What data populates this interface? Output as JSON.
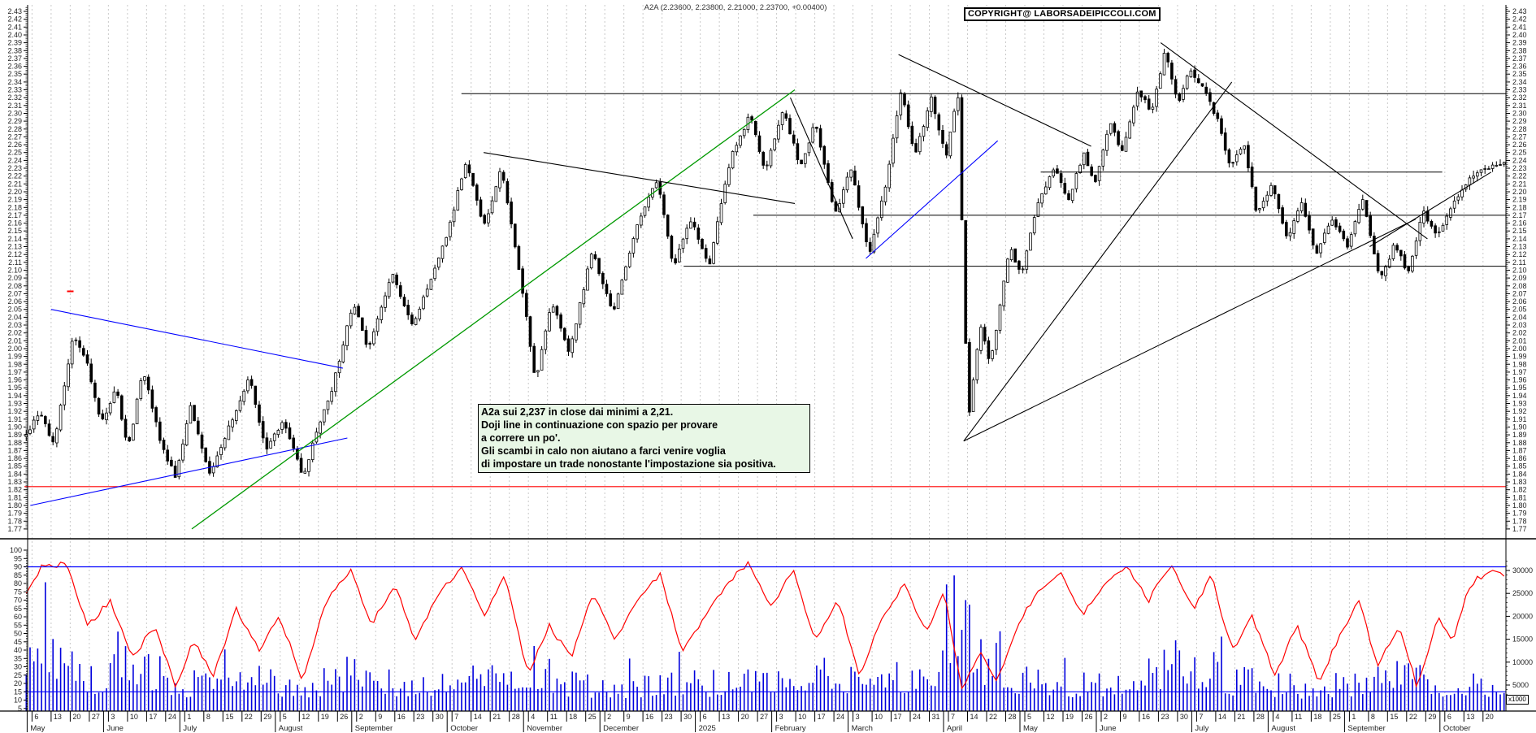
{
  "header": {
    "quote_line": "A2A (2.23600, 2.23800, 2.21000, 2.23700, +0.00400)",
    "copyright": "COPYRIGHT@ LABORSADEIPICCOLI.COM"
  },
  "annotation": {
    "lines": [
      "A2a sui 2,237 in close dai minimi a 2,21.",
      "Doji line in continuazione con spazio per provare",
      "a correre un po'.",
      "Gli scambi in calo non aiutano a farci venire voglia",
      "di impostare un trade nonostante l'impostazione sia positiva."
    ]
  },
  "colors": {
    "up_candle": "#ffffff",
    "down_candle": "#000000",
    "candle_outline": "#000000",
    "volume": "#0000dd",
    "oscillator": "#ff0000",
    "threshold": "#0000ff",
    "trend_blue": "#0000ff",
    "trend_green": "#009900",
    "trend_black": "#000000",
    "support_red": "#ff0000",
    "grid": "#c9c9c9",
    "axis_text": "#222222",
    "annotation_bg": "#e8f7e6"
  },
  "chart_data": {
    "type": "candlestick",
    "symbol": "A2A",
    "quote": {
      "open": 2.236,
      "high": 2.238,
      "low": 2.21,
      "close": 2.237,
      "change": "+0.00400"
    },
    "price_axis": {
      "min": 1.77,
      "max": 2.43,
      "tick_step": 0.01,
      "side": "both"
    },
    "oscillator_axis": {
      "min": 5,
      "max": 100,
      "tick_step": 5,
      "thresholds": [
        90,
        15
      ]
    },
    "volume_axis": {
      "ticks": [
        5000,
        10000,
        15000,
        20000,
        25000,
        30000
      ],
      "unit_note": "x1000"
    },
    "months": [
      {
        "label": "May",
        "days": [
          6,
          13,
          20,
          27
        ]
      },
      {
        "label": "June",
        "days": [
          3,
          10,
          17,
          24
        ]
      },
      {
        "label": "July",
        "days": [
          1,
          8,
          15,
          22,
          29
        ]
      },
      {
        "label": "August",
        "days": [
          5,
          12,
          19,
          26
        ]
      },
      {
        "label": "September",
        "days": [
          2,
          9,
          16,
          23,
          30
        ]
      },
      {
        "label": "October",
        "days": [
          7,
          14,
          21,
          28
        ]
      },
      {
        "label": "November",
        "days": [
          4,
          11,
          18,
          25
        ]
      },
      {
        "label": "December",
        "days": [
          2,
          9,
          16,
          23,
          30
        ]
      },
      {
        "label": "2025",
        "days": [
          6,
          13,
          20,
          27
        ]
      },
      {
        "label": "February",
        "days": [
          3,
          10,
          17,
          24
        ]
      },
      {
        "label": "March",
        "days": [
          3,
          10,
          17,
          24,
          31
        ]
      },
      {
        "label": "April",
        "days": [
          7,
          14,
          22,
          28
        ]
      },
      {
        "label": "May",
        "days": [
          5,
          12,
          19,
          26
        ]
      },
      {
        "label": "June",
        "days": [
          2,
          9,
          16,
          23,
          30
        ]
      },
      {
        "label": "July",
        "days": [
          7,
          14,
          21,
          28
        ]
      },
      {
        "label": "August",
        "days": [
          4,
          11,
          18,
          25
        ]
      },
      {
        "label": "September",
        "days": [
          1,
          8,
          15,
          22,
          29
        ]
      },
      {
        "label": "October",
        "days": [
          6,
          13,
          20
        ]
      }
    ],
    "price_path_pivots": [
      [
        0.0,
        1.885
      ],
      [
        0.01,
        1.92
      ],
      [
        0.02,
        1.875
      ],
      [
        0.033,
        2.02
      ],
      [
        0.042,
        1.985
      ],
      [
        0.052,
        1.905
      ],
      [
        0.062,
        1.95
      ],
      [
        0.07,
        1.87
      ],
      [
        0.08,
        1.975
      ],
      [
        0.092,
        1.88
      ],
      [
        0.102,
        1.835
      ],
      [
        0.112,
        1.925
      ],
      [
        0.125,
        1.84
      ],
      [
        0.138,
        1.9
      ],
      [
        0.152,
        1.965
      ],
      [
        0.163,
        1.87
      ],
      [
        0.175,
        1.91
      ],
      [
        0.188,
        1.835
      ],
      [
        0.198,
        1.9
      ],
      [
        0.208,
        1.95
      ],
      [
        0.222,
        2.06
      ],
      [
        0.232,
        2.0
      ],
      [
        0.248,
        2.095
      ],
      [
        0.262,
        2.03
      ],
      [
        0.274,
        2.085
      ],
      [
        0.286,
        2.15
      ],
      [
        0.298,
        2.24
      ],
      [
        0.31,
        2.155
      ],
      [
        0.322,
        2.23
      ],
      [
        0.335,
        2.09
      ],
      [
        0.345,
        1.96
      ],
      [
        0.356,
        2.06
      ],
      [
        0.368,
        1.995
      ],
      [
        0.383,
        2.125
      ],
      [
        0.397,
        2.045
      ],
      [
        0.413,
        2.155
      ],
      [
        0.427,
        2.215
      ],
      [
        0.438,
        2.105
      ],
      [
        0.45,
        2.165
      ],
      [
        0.462,
        2.105
      ],
      [
        0.477,
        2.245
      ],
      [
        0.49,
        2.3
      ],
      [
        0.5,
        2.225
      ],
      [
        0.512,
        2.305
      ],
      [
        0.524,
        2.23
      ],
      [
        0.534,
        2.29
      ],
      [
        0.547,
        2.17
      ],
      [
        0.558,
        2.23
      ],
      [
        0.57,
        2.12
      ],
      [
        0.581,
        2.205
      ],
      [
        0.592,
        2.33
      ],
      [
        0.601,
        2.245
      ],
      [
        0.612,
        2.32
      ],
      [
        0.622,
        2.245
      ],
      [
        0.63,
        2.33
      ],
      [
        0.637,
        1.905
      ],
      [
        0.645,
        2.03
      ],
      [
        0.652,
        1.98
      ],
      [
        0.665,
        2.13
      ],
      [
        0.673,
        2.09
      ],
      [
        0.683,
        2.18
      ],
      [
        0.695,
        2.23
      ],
      [
        0.705,
        2.19
      ],
      [
        0.715,
        2.25
      ],
      [
        0.723,
        2.21
      ],
      [
        0.733,
        2.29
      ],
      [
        0.741,
        2.25
      ],
      [
        0.752,
        2.33
      ],
      [
        0.761,
        2.3
      ],
      [
        0.77,
        2.38
      ],
      [
        0.779,
        2.31
      ],
      [
        0.786,
        2.355
      ],
      [
        0.796,
        2.33
      ],
      [
        0.806,
        2.29
      ],
      [
        0.814,
        2.23
      ],
      [
        0.823,
        2.262
      ],
      [
        0.832,
        2.17
      ],
      [
        0.842,
        2.21
      ],
      [
        0.852,
        2.14
      ],
      [
        0.862,
        2.185
      ],
      [
        0.872,
        2.12
      ],
      [
        0.882,
        2.165
      ],
      [
        0.893,
        2.13
      ],
      [
        0.903,
        2.195
      ],
      [
        0.915,
        2.085
      ],
      [
        0.925,
        2.135
      ],
      [
        0.934,
        2.095
      ],
      [
        0.944,
        2.175
      ],
      [
        0.953,
        2.145
      ],
      [
        0.962,
        2.175
      ],
      [
        0.974,
        2.215
      ],
      [
        0.985,
        2.228
      ],
      [
        1.0,
        2.237
      ]
    ],
    "oscillator_points": [
      [
        0.0,
        72
      ],
      [
        0.012,
        90
      ],
      [
        0.028,
        92
      ],
      [
        0.043,
        55
      ],
      [
        0.058,
        70
      ],
      [
        0.073,
        35
      ],
      [
        0.088,
        55
      ],
      [
        0.102,
        18
      ],
      [
        0.114,
        45
      ],
      [
        0.128,
        25
      ],
      [
        0.143,
        65
      ],
      [
        0.158,
        40
      ],
      [
        0.172,
        60
      ],
      [
        0.188,
        22
      ],
      [
        0.204,
        70
      ],
      [
        0.22,
        88
      ],
      [
        0.234,
        55
      ],
      [
        0.25,
        80
      ],
      [
        0.264,
        45
      ],
      [
        0.28,
        75
      ],
      [
        0.295,
        90
      ],
      [
        0.31,
        60
      ],
      [
        0.324,
        85
      ],
      [
        0.34,
        25
      ],
      [
        0.354,
        55
      ],
      [
        0.369,
        35
      ],
      [
        0.384,
        75
      ],
      [
        0.399,
        45
      ],
      [
        0.414,
        70
      ],
      [
        0.429,
        85
      ],
      [
        0.444,
        40
      ],
      [
        0.459,
        60
      ],
      [
        0.474,
        80
      ],
      [
        0.489,
        92
      ],
      [
        0.504,
        65
      ],
      [
        0.519,
        88
      ],
      [
        0.534,
        45
      ],
      [
        0.549,
        70
      ],
      [
        0.564,
        25
      ],
      [
        0.579,
        60
      ],
      [
        0.594,
        80
      ],
      [
        0.609,
        50
      ],
      [
        0.621,
        75
      ],
      [
        0.633,
        15
      ],
      [
        0.645,
        40
      ],
      [
        0.656,
        20
      ],
      [
        0.67,
        55
      ],
      [
        0.684,
        75
      ],
      [
        0.699,
        88
      ],
      [
        0.714,
        60
      ],
      [
        0.729,
        80
      ],
      [
        0.744,
        90
      ],
      [
        0.759,
        70
      ],
      [
        0.774,
        92
      ],
      [
        0.789,
        65
      ],
      [
        0.801,
        85
      ],
      [
        0.815,
        40
      ],
      [
        0.829,
        60
      ],
      [
        0.844,
        25
      ],
      [
        0.859,
        55
      ],
      [
        0.874,
        20
      ],
      [
        0.888,
        50
      ],
      [
        0.901,
        70
      ],
      [
        0.913,
        30
      ],
      [
        0.928,
        55
      ],
      [
        0.94,
        18
      ],
      [
        0.954,
        60
      ],
      [
        0.964,
        45
      ],
      [
        0.976,
        80
      ],
      [
        0.99,
        88
      ],
      [
        1.0,
        84
      ]
    ],
    "volume_envelope": [
      [
        0.0,
        12000
      ],
      [
        0.01,
        30000
      ],
      [
        0.02,
        24000
      ],
      [
        0.032,
        15000
      ],
      [
        0.05,
        9000
      ],
      [
        0.07,
        21000
      ],
      [
        0.09,
        12000
      ],
      [
        0.11,
        8000
      ],
      [
        0.13,
        14000
      ],
      [
        0.16,
        9000
      ],
      [
        0.19,
        7000
      ],
      [
        0.22,
        13000
      ],
      [
        0.25,
        9000
      ],
      [
        0.28,
        8000
      ],
      [
        0.3,
        12000
      ],
      [
        0.33,
        9000
      ],
      [
        0.345,
        14000
      ],
      [
        0.37,
        8000
      ],
      [
        0.4,
        7000
      ],
      [
        0.43,
        9000
      ],
      [
        0.46,
        8000
      ],
      [
        0.49,
        10000
      ],
      [
        0.52,
        9000
      ],
      [
        0.55,
        12000
      ],
      [
        0.58,
        8000
      ],
      [
        0.61,
        9000
      ],
      [
        0.633,
        30000
      ],
      [
        0.645,
        18000
      ],
      [
        0.66,
        12000
      ],
      [
        0.69,
        9000
      ],
      [
        0.72,
        8000
      ],
      [
        0.75,
        10000
      ],
      [
        0.78,
        16000
      ],
      [
        0.81,
        10000
      ],
      [
        0.84,
        8000
      ],
      [
        0.87,
        7000
      ],
      [
        0.9,
        9000
      ],
      [
        0.93,
        15000
      ],
      [
        0.95,
        8000
      ],
      [
        0.97,
        10000
      ],
      [
        1.0,
        7000
      ]
    ],
    "trend_lines": [
      {
        "color": "blue",
        "points": [
          [
            0.018,
            2.05
          ],
          [
            0.215,
            1.975
          ]
        ]
      },
      {
        "color": "blue",
        "points": [
          [
            0.004,
            1.8
          ],
          [
            0.218,
            1.886
          ]
        ]
      },
      {
        "color": "green",
        "points": [
          [
            0.113,
            1.77
          ],
          [
            0.52,
            2.33
          ]
        ]
      },
      {
        "color": "black",
        "points": [
          [
            0.31,
            2.25
          ],
          [
            0.52,
            2.185
          ]
        ]
      },
      {
        "color": "black",
        "points": [
          [
            0.517,
            2.32
          ],
          [
            0.559,
            2.14
          ]
        ]
      },
      {
        "color": "blue",
        "points": [
          [
            0.568,
            2.115
          ],
          [
            0.657,
            2.265
          ]
        ]
      },
      {
        "color": "black",
        "points": [
          [
            0.59,
            2.375
          ],
          [
            0.72,
            2.258
          ]
        ]
      },
      {
        "color": "black",
        "points": [
          [
            0.767,
            2.39
          ],
          [
            0.947,
            2.14
          ]
        ]
      },
      {
        "color": "black",
        "points": [
          [
            0.634,
            1.882
          ],
          [
            0.815,
            2.34
          ]
        ]
      },
      {
        "color": "black",
        "points": [
          [
            0.634,
            1.882
          ],
          [
            0.939,
            2.165
          ]
        ]
      },
      {
        "color": "black",
        "points": [
          [
            0.908,
            2.13
          ],
          [
            0.99,
            2.225
          ]
        ]
      }
    ],
    "horizontal_lines": [
      {
        "color": "red",
        "price": 1.824,
        "from": 0.0,
        "to": 1.0
      },
      {
        "color": "black",
        "price": 2.325,
        "from": 0.295,
        "to": 1.0
      },
      {
        "color": "black",
        "price": 2.17,
        "from": 0.492,
        "to": 1.0
      },
      {
        "color": "black",
        "price": 2.105,
        "from": 0.445,
        "to": 1.0
      },
      {
        "color": "black",
        "price": 2.225,
        "from": 0.686,
        "to": 0.957
      }
    ],
    "marker": {
      "color": "red",
      "t": 0.031,
      "price": 2.073
    }
  }
}
